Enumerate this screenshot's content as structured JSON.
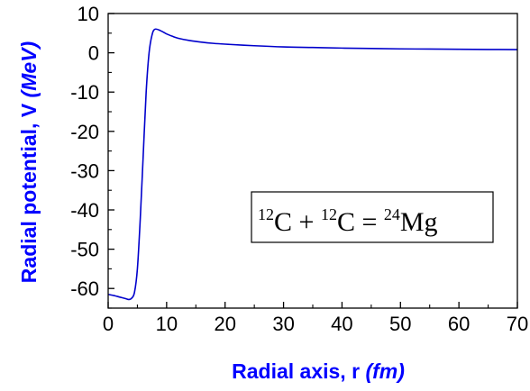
{
  "chart_data": {
    "type": "line",
    "title": "",
    "xlabel": "Radial axis, r ",
    "xlabel_unit": "(fm)",
    "ylabel": "Radial potential, V ",
    "ylabel_unit": "(MeV)",
    "xlim": [
      0,
      70
    ],
    "ylim": [
      -65,
      10
    ],
    "x_ticks": [
      0,
      10,
      20,
      30,
      40,
      50,
      60,
      70
    ],
    "y_ticks": [
      10,
      0,
      -10,
      -20,
      -30,
      -40,
      -50,
      -60
    ],
    "x_tick_labels": [
      "0",
      "10",
      "20",
      "30",
      "40",
      "50",
      "60",
      "70"
    ],
    "y_tick_labels": [
      "10",
      "0",
      "-10",
      "-20",
      "-30",
      "-40",
      "-50",
      "-60"
    ],
    "grid": false,
    "colors": {
      "line": "#0000cc",
      "axis_title": "#0000ff",
      "axes": "#000000"
    },
    "series": [
      {
        "x": [
          0,
          1,
          2,
          3,
          3.5,
          4,
          4.5,
          5,
          5.5,
          6,
          6.5,
          7,
          7.5,
          8,
          9,
          10,
          11,
          12,
          14,
          16,
          18,
          20,
          25,
          30,
          35,
          40,
          45,
          50,
          55,
          60,
          65,
          70
        ],
        "y": [
          -61.5,
          -61.8,
          -62.2,
          -62.6,
          -62.8,
          -62.5,
          -61,
          -55,
          -42,
          -26,
          -10,
          0,
          4.5,
          6,
          5.6,
          4.8,
          4.2,
          3.7,
          3.1,
          2.7,
          2.4,
          2.2,
          1.8,
          1.5,
          1.35,
          1.2,
          1.1,
          1.0,
          0.95,
          0.9,
          0.85,
          0.8
        ]
      }
    ],
    "annotation": {
      "parts": [
        {
          "sup": "12",
          "text": "C + "
        },
        {
          "sup": "12",
          "text": "C = "
        },
        {
          "sup": "24",
          "text": "Mg"
        }
      ]
    }
  }
}
